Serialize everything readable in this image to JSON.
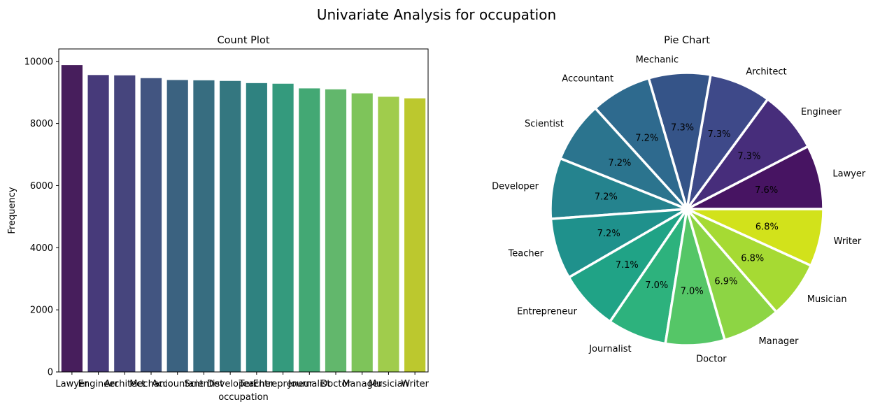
{
  "figure": {
    "title": "Univariate Analysis for occupation"
  },
  "chart_data": [
    {
      "type": "bar",
      "title": "Count Plot",
      "xlabel": "occupation",
      "ylabel": "Frequency",
      "ylim": [
        0,
        10400
      ],
      "yticks": [
        0,
        2000,
        4000,
        6000,
        8000,
        10000
      ],
      "categories": [
        "Lawyer",
        "Engineer",
        "Architect",
        "Mechanic",
        "Accountant",
        "Scientist",
        "Developer",
        "Teacher",
        "Entrepreneur",
        "Journalist",
        "Doctor",
        "Manager",
        "Musician",
        "Writer"
      ],
      "values": [
        9880,
        9560,
        9550,
        9460,
        9400,
        9390,
        9370,
        9300,
        9280,
        9130,
        9100,
        8970,
        8860,
        8810
      ],
      "colors": [
        "#471e5c",
        "#473a7a",
        "#46457d",
        "#425581",
        "#3b6280",
        "#376d80",
        "#347780",
        "#2f8280",
        "#349a7d",
        "#43a874",
        "#62b76c",
        "#7ec45a",
        "#a0cc4c",
        "#bcc82e"
      ],
      "grid": false,
      "legend": "none"
    },
    {
      "type": "pie",
      "title": "Pie Chart",
      "labels": [
        "Lawyer",
        "Engineer",
        "Architect",
        "Mechanic",
        "Accountant",
        "Scientist",
        "Developer",
        "Teacher",
        "Entrepreneur",
        "Journalist",
        "Doctor",
        "Manager",
        "Musician",
        "Writer"
      ],
      "values": [
        7.6,
        7.3,
        7.3,
        7.3,
        7.2,
        7.2,
        7.2,
        7.2,
        7.1,
        7.0,
        7.0,
        6.9,
        6.8,
        6.8
      ],
      "pct_labels": [
        "7.6%",
        "7.3%",
        "7.3%",
        "7.3%",
        "7.2%",
        "7.2%",
        "7.2%",
        "7.2%",
        "7.1%",
        "7.0%",
        "7.0%",
        "6.9%",
        "6.8%",
        "6.8%"
      ],
      "colors": [
        "#471462",
        "#472d7b",
        "#3e4989",
        "#355488",
        "#2e6a8e",
        "#2b748e",
        "#25838e",
        "#1f918c",
        "#20a386",
        "#2db27d",
        "#55c667",
        "#8dd544",
        "#a6da33",
        "#d2e21b"
      ],
      "start_angle_deg": 0,
      "direction": "counterclockwise",
      "edge_color": "#ffffff",
      "legend": "none"
    }
  ]
}
